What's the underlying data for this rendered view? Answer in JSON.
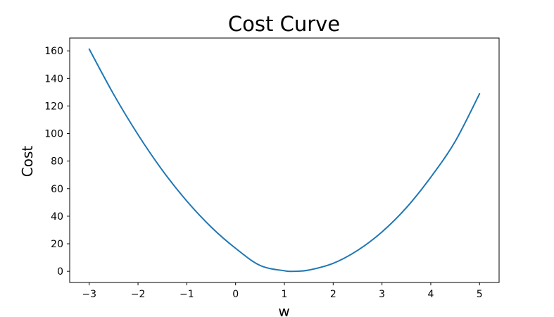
{
  "chart_data": {
    "type": "line",
    "title": "Cost Curve",
    "xlabel": "w",
    "ylabel": "Cost",
    "xlim": [
      -3.4,
      5.4
    ],
    "ylim": [
      -8.1,
      169.3
    ],
    "xticks": [
      -3,
      -2,
      -1,
      0,
      1,
      2,
      3,
      4,
      5
    ],
    "xtick_labels": [
      "−3",
      "−2",
      "−1",
      "0",
      "1",
      "2",
      "3",
      "4",
      "5"
    ],
    "yticks": [
      0,
      20,
      40,
      60,
      80,
      100,
      120,
      140,
      160
    ],
    "ytick_labels": [
      "0",
      "20",
      "40",
      "60",
      "80",
      "100",
      "120",
      "140",
      "160"
    ],
    "grid": false,
    "series": [
      {
        "color": "#1f77b4",
        "x": [
          -3.0,
          -2.5,
          -2.0,
          -1.5,
          -1.0,
          -0.5,
          0.0,
          0.5,
          1.0,
          1.2,
          1.5,
          2.0,
          2.5,
          3.0,
          3.5,
          4.0,
          4.5,
          5.0
        ],
        "y": [
          161.3,
          128.5,
          99.2,
          73.3,
          51.0,
          32.1,
          16.7,
          4.3,
          0.4,
          0.0,
          0.9,
          5.8,
          15.2,
          28.6,
          46.2,
          68.3,
          94.3,
          128.9
        ]
      }
    ]
  }
}
